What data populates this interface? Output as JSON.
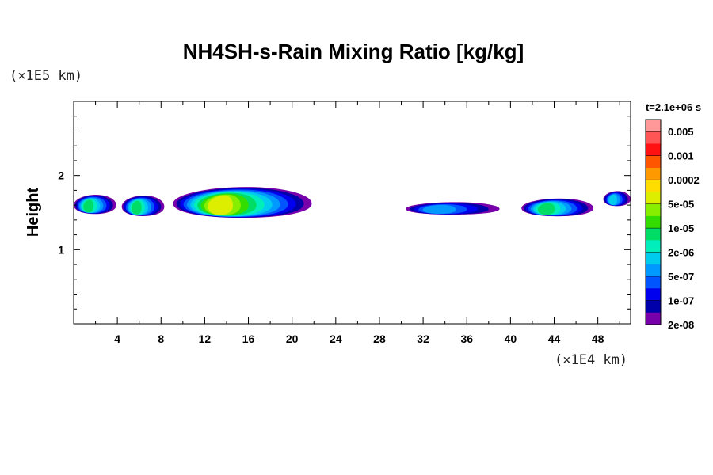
{
  "chart_data": {
    "type": "heatmap",
    "title": "NH4SH-s-Rain Mixing Ratio [kg/kg]",
    "ylabel": "Height",
    "y_scale_label": "(×1E5 km)",
    "x_scale_label": "(×1E4 km)",
    "time_label": "t=2.1e+06 s",
    "xlim": [
      0,
      51
    ],
    "ylim": [
      0,
      3
    ],
    "x_ticks": [
      "4",
      "8",
      "12",
      "16",
      "20",
      "24",
      "28",
      "32",
      "36",
      "40",
      "44",
      "48"
    ],
    "y_ticks": [
      "1",
      "2"
    ],
    "colorbar": {
      "labels": [
        "0.005",
        "0.001",
        "0.0002",
        "5e-05",
        "1e-05",
        "2e-06",
        "5e-07",
        "1e-07",
        "2e-08"
      ],
      "colors": [
        "#ff9999",
        "#ff5555",
        "#ff1111",
        "#ff5500",
        "#ff9900",
        "#ffdd00",
        "#ddee00",
        "#88ee00",
        "#33dd00",
        "#00dd66",
        "#00eebb",
        "#00ccee",
        "#0099ff",
        "#0055ff",
        "#0000ee",
        "#0000aa",
        "#7700aa"
      ]
    },
    "clouds": [
      {
        "x0": 0.0,
        "x1": 3.9,
        "y": 1.6,
        "h": 0.28,
        "peak": 8
      },
      {
        "x0": 4.4,
        "x1": 8.3,
        "y": 1.58,
        "h": 0.3,
        "peak": 8
      },
      {
        "x0": 9.1,
        "x1": 21.8,
        "y": 1.62,
        "h": 0.45,
        "peak": 11
      },
      {
        "x0": 30.4,
        "x1": 39.0,
        "y": 1.55,
        "h": 0.18,
        "peak": 5
      },
      {
        "x0": 41.0,
        "x1": 47.6,
        "y": 1.56,
        "h": 0.26,
        "peak": 8
      },
      {
        "x0": 48.5,
        "x1": 51.0,
        "y": 1.68,
        "h": 0.22,
        "peak": 6
      }
    ]
  }
}
